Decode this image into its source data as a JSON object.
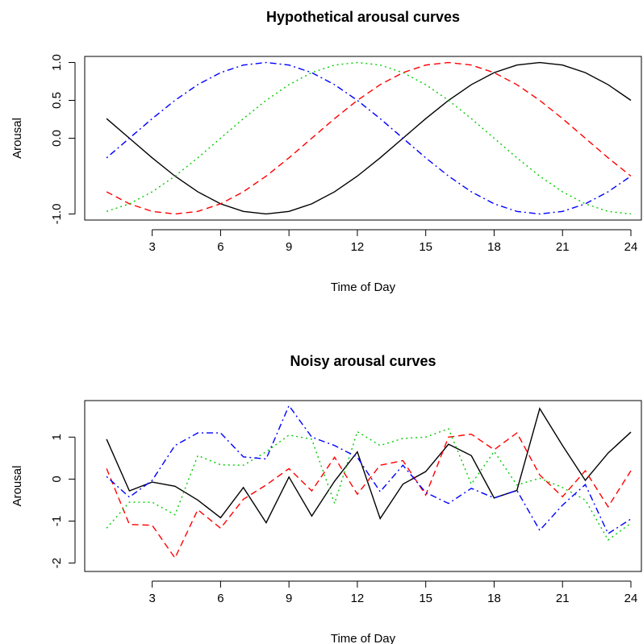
{
  "chart_data": [
    {
      "type": "line",
      "title": "Hypothetical arousal curves",
      "xlabel": "Time of Day",
      "ylabel": "Arousal",
      "x": [
        1,
        2,
        3,
        4,
        5,
        6,
        7,
        8,
        9,
        10,
        11,
        12,
        13,
        14,
        15,
        16,
        17,
        18,
        19,
        20,
        21,
        22,
        23,
        24
      ],
      "xlim": [
        0.04,
        24.46
      ],
      "ylim": [
        -1.08,
        1.08
      ],
      "xticks": [
        3,
        6,
        9,
        12,
        15,
        18,
        21,
        24
      ],
      "yticks": [
        {
          "value": -1,
          "label": "-1.0"
        },
        {
          "value": 0,
          "label": "0.0"
        },
        0.5,
        {
          "value": 1,
          "label": "1.0"
        }
      ],
      "series": [
        {
          "color": "#000000",
          "dash": "solid",
          "values": [
            0.259,
            0,
            -0.259,
            -0.5,
            -0.707,
            -0.866,
            -0.966,
            -1,
            -0.966,
            -0.866,
            -0.707,
            -0.5,
            -0.259,
            0,
            0.259,
            0.5,
            0.707,
            0.866,
            0.966,
            1,
            0.966,
            0.866,
            0.707,
            0.5
          ]
        },
        {
          "color": "#ff0000",
          "dash": "dashed",
          "values": [
            -0.707,
            -0.866,
            -0.966,
            -1,
            -0.966,
            -0.866,
            -0.707,
            -0.5,
            -0.259,
            0,
            0.259,
            0.5,
            0.707,
            0.866,
            0.966,
            1,
            0.966,
            0.866,
            0.707,
            0.5,
            0.259,
            0,
            -0.259,
            -0.5
          ]
        },
        {
          "color": "#00cd00",
          "dash": "dotted",
          "values": [
            -0.966,
            -0.866,
            -0.707,
            -0.5,
            -0.259,
            0,
            0.259,
            0.5,
            0.707,
            0.866,
            0.966,
            1,
            0.966,
            0.866,
            0.707,
            0.5,
            0.259,
            0,
            -0.259,
            -0.5,
            -0.707,
            -0.866,
            -0.966,
            -1
          ]
        },
        {
          "color": "#0000ff",
          "dash": "dotdash",
          "values": [
            -0.259,
            0,
            0.259,
            0.5,
            0.707,
            0.866,
            0.966,
            1,
            0.966,
            0.866,
            0.707,
            0.5,
            0.259,
            0,
            -0.259,
            -0.5,
            -0.707,
            -0.866,
            -0.966,
            -1,
            -0.966,
            -0.866,
            -0.707,
            -0.5
          ]
        }
      ]
    },
    {
      "type": "line",
      "title": "Noisy arousal curves",
      "xlabel": "Time of Day",
      "ylabel": "Arousal",
      "x": [
        1,
        2,
        3,
        4,
        5,
        6,
        7,
        8,
        9,
        10,
        11,
        12,
        13,
        14,
        15,
        16,
        17,
        18,
        19,
        20,
        21,
        22,
        23,
        24
      ],
      "xlim": [
        0.04,
        24.46
      ],
      "ylim": [
        -2.2,
        1.87
      ],
      "xticks": [
        3,
        6,
        9,
        12,
        15,
        18,
        21,
        24
      ],
      "yticks": [
        -2,
        -1,
        0,
        1
      ],
      "series": [
        {
          "color": "#000000",
          "dash": "solid",
          "values": [
            0.95,
            -0.28,
            -0.07,
            -0.17,
            -0.5,
            -0.92,
            -0.2,
            -1.04,
            0.05,
            -0.88,
            -0.05,
            0.65,
            -0.94,
            -0.12,
            0.18,
            0.83,
            0.56,
            -0.45,
            -0.27,
            1.68,
            0.8,
            -0.03,
            0.62,
            1.12
          ]
        },
        {
          "color": "#ff0000",
          "dash": "dashed",
          "values": [
            0.25,
            -1.08,
            -1.1,
            -1.88,
            -0.73,
            -1.17,
            -0.48,
            -0.14,
            0.25,
            -0.28,
            0.52,
            -0.36,
            0.33,
            0.44,
            -0.38,
            1.0,
            1.07,
            0.7,
            1.1,
            0.1,
            -0.42,
            0.2,
            -0.66,
            0.2
          ]
        },
        {
          "color": "#00cd00",
          "dash": "dotted",
          "values": [
            -1.17,
            -0.55,
            -0.55,
            -0.85,
            0.56,
            0.34,
            0.33,
            0.65,
            1.05,
            0.95,
            -0.58,
            1.13,
            0.8,
            0.97,
            1.0,
            1.2,
            -0.12,
            0.66,
            -0.14,
            0.02,
            -0.2,
            -0.5,
            -1.45,
            -1.05
          ]
        },
        {
          "color": "#0000ff",
          "dash": "dotdash",
          "values": [
            0.06,
            -0.43,
            -0.03,
            0.8,
            1.1,
            1.1,
            0.53,
            0.48,
            1.75,
            1.0,
            0.8,
            0.52,
            -0.3,
            0.33,
            -0.32,
            -0.58,
            -0.22,
            -0.45,
            -0.27,
            -1.22,
            -0.62,
            -0.13,
            -1.3,
            -0.95
          ]
        }
      ]
    }
  ]
}
